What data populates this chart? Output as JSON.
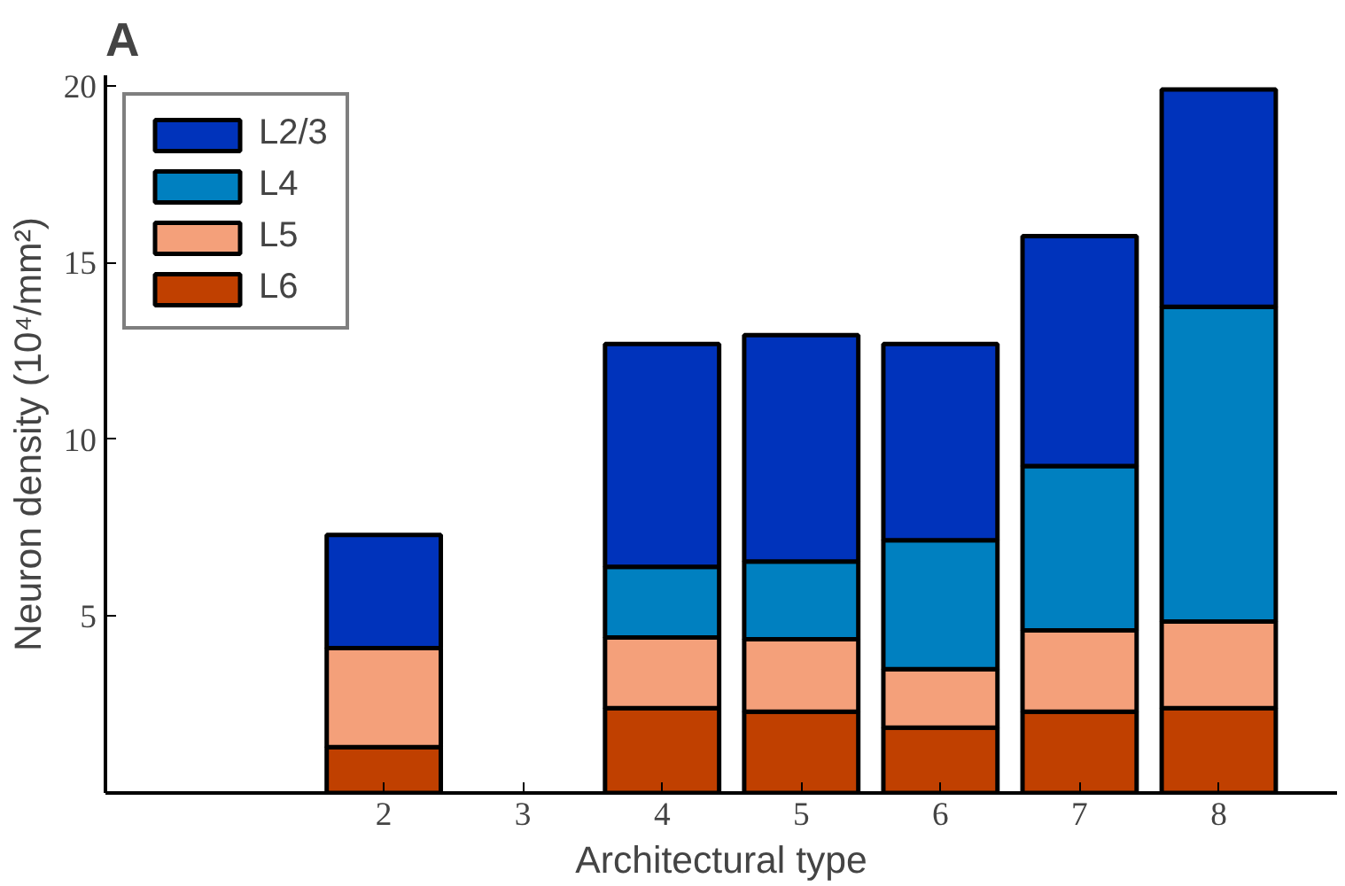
{
  "chart_data": {
    "type": "bar",
    "stacked": true,
    "title": "A",
    "xlabel": "Architectural type",
    "ylabel": "Neuron density (10⁴/mm²)",
    "x": [
      2,
      3,
      4,
      5,
      6,
      7,
      8
    ],
    "xlim": [
      0,
      8.85
    ],
    "xticks": [
      2,
      3,
      4,
      5,
      6,
      7,
      8
    ],
    "ylim": [
      0,
      20.3
    ],
    "yticks": [
      5,
      10,
      15,
      20
    ],
    "series": [
      {
        "name": "L6",
        "color": "#c04000",
        "values": [
          1.3,
          null,
          2.4,
          2.3,
          1.85,
          2.3,
          2.4
        ]
      },
      {
        "name": "L5",
        "color": "#f4a07a",
        "values": [
          2.8,
          null,
          2.0,
          2.05,
          1.65,
          2.3,
          2.45
        ]
      },
      {
        "name": "L4",
        "color": "#0080c0",
        "values": [
          0,
          null,
          2.0,
          2.2,
          3.65,
          4.65,
          8.9
        ]
      },
      {
        "name": "L2/3",
        "color": "#0033bb",
        "values": [
          3.2,
          null,
          6.3,
          6.4,
          5.55,
          6.5,
          6.15
        ]
      }
    ],
    "legend": "top left",
    "grid": false
  }
}
